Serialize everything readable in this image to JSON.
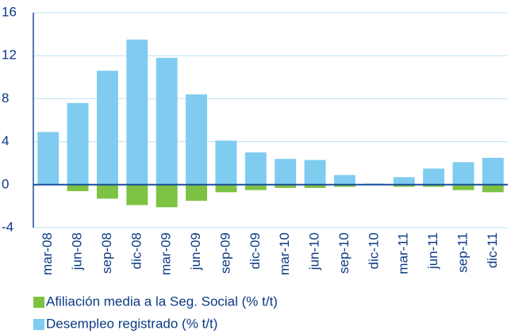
{
  "chart_data": {
    "type": "bar",
    "categories": [
      "mar-08",
      "jun-08",
      "sep-08",
      "dic-08",
      "mar-09",
      "jun-09",
      "sep-09",
      "dic-09",
      "mar-10",
      "jun-10",
      "sep-10",
      "dic-10",
      "mar-11",
      "jun-11",
      "sep-11",
      "dic-11"
    ],
    "series": [
      {
        "name": "Afiliación media a la Seg. Social (% t/t)",
        "color": "#7dc242",
        "values": [
          0,
          -0.6,
          -1.3,
          -1.9,
          -2.1,
          -1.5,
          -0.7,
          -0.5,
          -0.3,
          -0.3,
          -0.2,
          0.1,
          -0.2,
          -0.2,
          -0.5,
          -0.7
        ]
      },
      {
        "name": "Desempleo registrado (% t/t)",
        "color": "#7fccf0",
        "values": [
          4.9,
          7.6,
          10.6,
          13.5,
          11.8,
          8.4,
          4.1,
          3.0,
          2.4,
          2.3,
          0.9,
          0.1,
          0.7,
          1.5,
          2.1,
          2.5
        ]
      }
    ],
    "ylim": [
      -4,
      16
    ],
    "yticks": [
      -4,
      0,
      4,
      8,
      12,
      16
    ],
    "grid": true
  }
}
